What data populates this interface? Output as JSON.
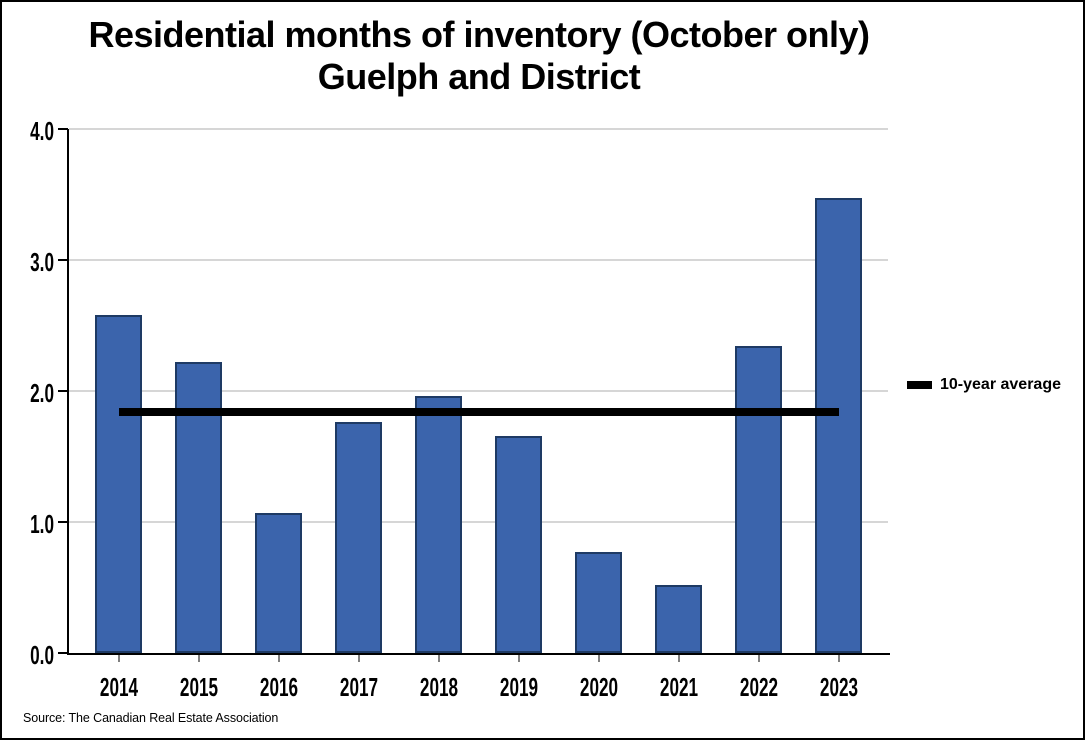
{
  "title": {
    "line1": "Residential months of inventory (October only)",
    "line2": "Guelph and District"
  },
  "legend": {
    "label": "10-year average"
  },
  "source_note": "Source: The Canadian Real Estate Association",
  "colors": {
    "bar_fill": "#3B64AC",
    "bar_border": "#1E3A64",
    "gridline": "#D6D6D6",
    "axis": "#000000",
    "avg_line": "#000000",
    "x_tick": "#7F7F7F",
    "text": "#000000",
    "background": "#FFFFFF"
  },
  "chart_data": {
    "type": "bar",
    "title": "Residential months of inventory (October only) Guelph and District",
    "xlabel": "",
    "ylabel": "",
    "categories": [
      "2014",
      "2015",
      "2016",
      "2017",
      "2018",
      "2019",
      "2020",
      "2021",
      "2022",
      "2023"
    ],
    "series": [
      {
        "name": "Months of inventory (October)",
        "type": "bar",
        "values": [
          2.58,
          2.22,
          1.07,
          1.76,
          1.96,
          1.66,
          0.77,
          0.52,
          2.34,
          3.47
        ]
      },
      {
        "name": "10-year average",
        "type": "horizontal-line",
        "value": 1.84
      }
    ],
    "ylim": [
      0,
      4
    ],
    "ytick_labels": [
      "0.0",
      "1.0",
      "2.0",
      "3.0",
      "4.0"
    ],
    "grid": true,
    "legend_position": "right-middle"
  }
}
